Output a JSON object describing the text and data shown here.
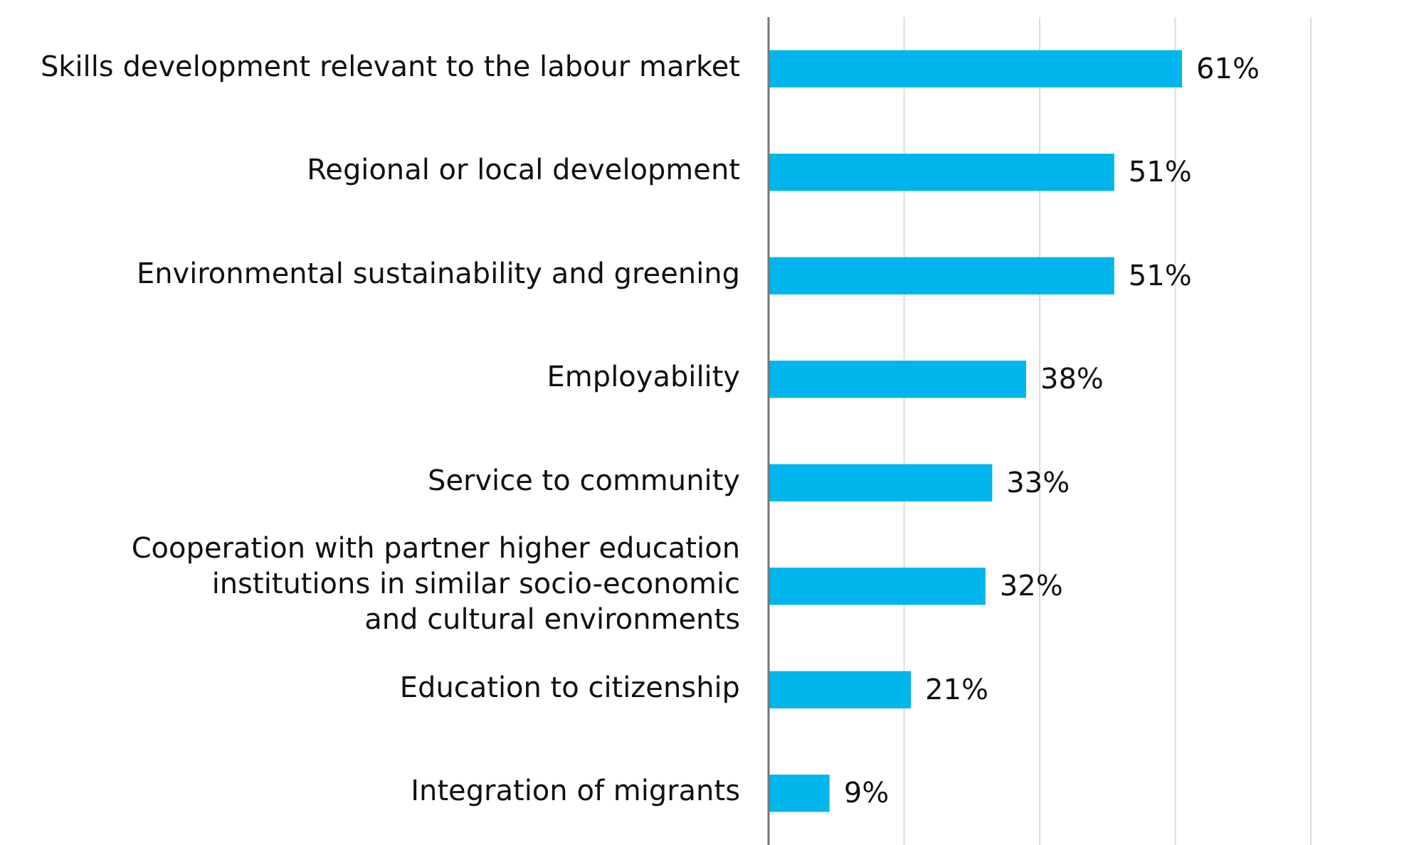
{
  "chart_data": {
    "type": "bar",
    "orientation": "horizontal",
    "categories": [
      "Skills development relevant to the labour market",
      "Regional or local development",
      "Environmental sustainability and greening",
      "Employability",
      "Service to community",
      "Cooperation with partner higher education institutions in similar socio-economic and cultural environments",
      "Education to citizenship",
      "Integration of migrants"
    ],
    "values": [
      61,
      51,
      51,
      38,
      33,
      32,
      21,
      9
    ],
    "value_labels": [
      "61%",
      "51%",
      "51%",
      "38%",
      "33%",
      "32%",
      "21%",
      "9%"
    ],
    "color": "#00b5ec",
    "xlim": [
      0,
      80
    ],
    "xticks": [
      {
        "value": 0,
        "label": null
      },
      {
        "value": 20,
        "label": null
      },
      {
        "value": 40,
        "label": null
      },
      {
        "value": 60,
        "label": null
      },
      {
        "value": 80,
        "label": null
      }
    ],
    "tick_labels": "y",
    "grid": "x"
  }
}
